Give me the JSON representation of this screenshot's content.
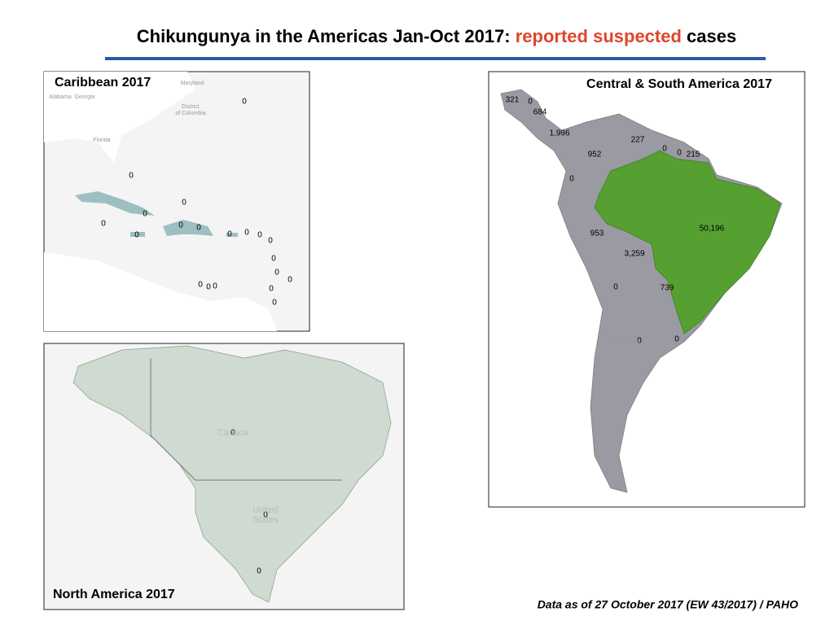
{
  "header": {
    "title_start": "Chikungunya in the Americas Jan-Oct 2017:",
    "title_highlight": "reported suspected",
    "title_end": "cases"
  },
  "caribbean": {
    "title": "Caribbean 2017",
    "base_labels": [
      "Maryland",
      "Alabama",
      "Georgia",
      "District",
      "of Columbia",
      "Florida"
    ],
    "labels": [
      "0",
      "0",
      "0",
      "0",
      "0",
      "0",
      "0",
      "0",
      "0",
      "0",
      "0",
      "0",
      "0",
      "0",
      "0",
      "0",
      "0",
      "0",
      "0",
      "0"
    ]
  },
  "central_south": {
    "title": "Central & South America  2017",
    "labels": [
      "321",
      "0",
      "684",
      "1,996",
      "227",
      "0",
      "0",
      "215",
      "952",
      "0",
      "50,196",
      "953",
      "3,259",
      "0",
      "739",
      "0",
      "0"
    ],
    "base_labels": [
      "Argentina"
    ]
  },
  "north": {
    "title": "North America 2017",
    "labels": [
      "0",
      "0",
      "0"
    ],
    "base_labels": [
      "Canada",
      "United",
      "States"
    ]
  },
  "footer": {
    "note": "Data as of 27 October 2017 (EW 43/2017) / PAHO"
  }
}
